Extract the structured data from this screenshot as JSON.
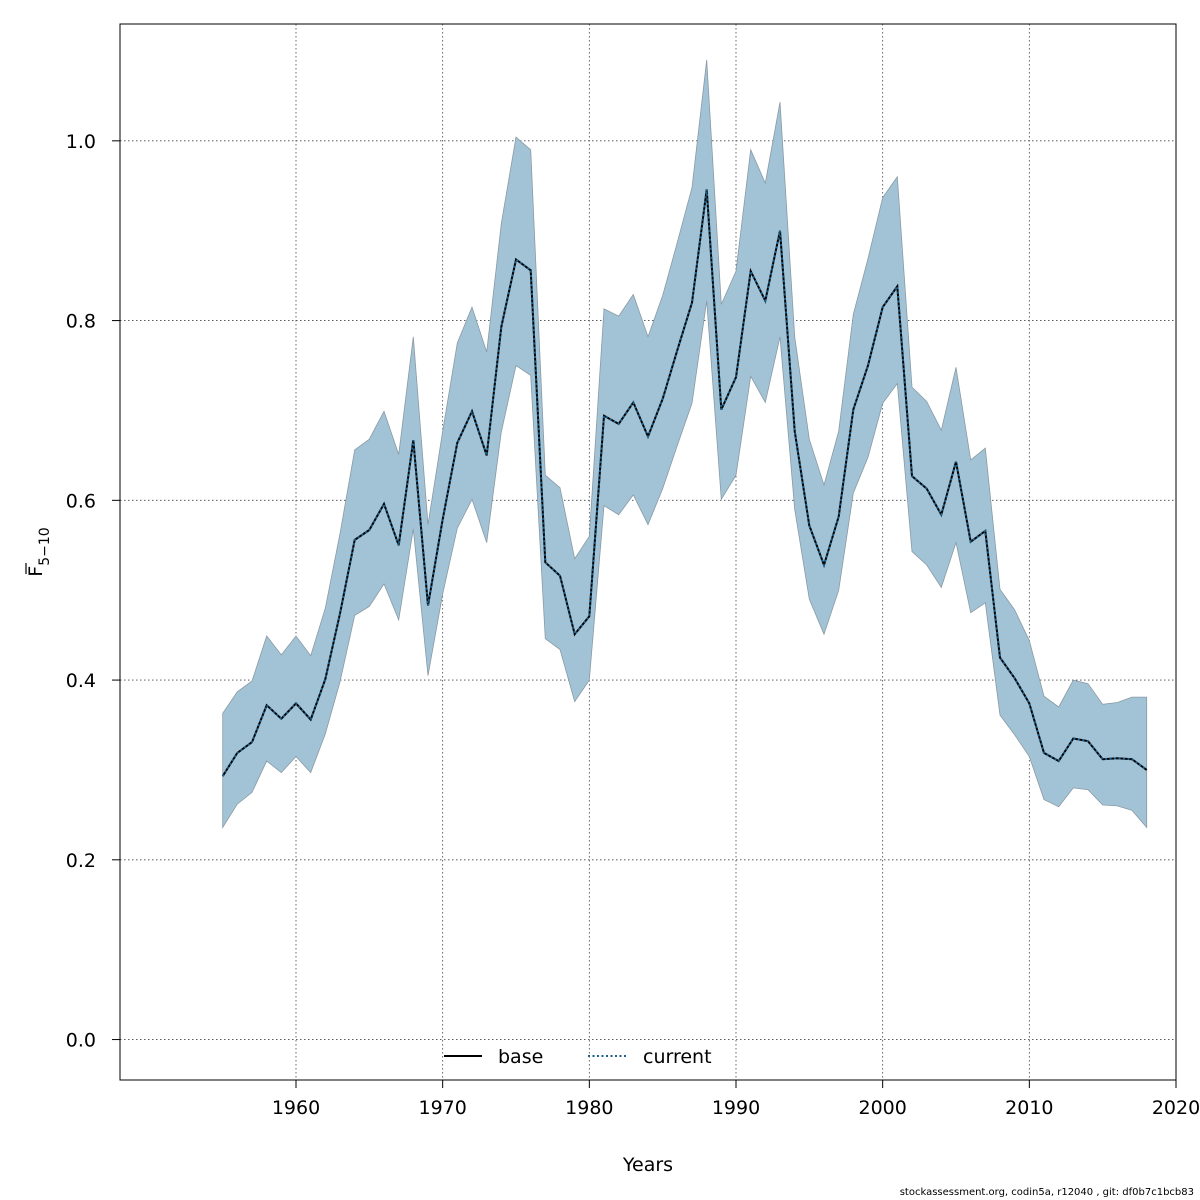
{
  "chart_data": {
    "type": "area",
    "xlabel": "Years",
    "ylabel": {
      "main": "F",
      "sub": "5−10"
    },
    "xlim": [
      1948,
      2020
    ],
    "ylim": [
      -0.045,
      1.13
    ],
    "x_ticks": [
      1960,
      1970,
      1980,
      1990,
      2000,
      2010,
      2020
    ],
    "y_ticks": [
      0.0,
      0.2,
      0.4,
      0.6,
      0.8,
      1.0
    ],
    "y_tick_labels": [
      "0.0",
      "0.2",
      "0.4",
      "0.6",
      "0.8",
      "1.0"
    ],
    "grid": true,
    "legend_position": "bottom",
    "colors": {
      "band": "#a2c3d5",
      "band_edge": "#8a9aa5",
      "base": "#000000",
      "current": "#1f5f8b"
    },
    "x": [
      1955,
      1956,
      1957,
      1958,
      1959,
      1960,
      1961,
      1962,
      1963,
      1964,
      1965,
      1966,
      1967,
      1968,
      1969,
      1970,
      1971,
      1972,
      1973,
      1974,
      1975,
      1976,
      1977,
      1978,
      1979,
      1980,
      1981,
      1982,
      1983,
      1984,
      1985,
      1986,
      1987,
      1988,
      1989,
      1990,
      1991,
      1992,
      1993,
      1994,
      1995,
      1996,
      1997,
      1998,
      1999,
      2000,
      2001,
      2002,
      2003,
      2004,
      2005,
      2006,
      2007,
      2008,
      2009,
      2010,
      2011,
      2012,
      2013,
      2014,
      2015,
      2016,
      2017,
      2018
    ],
    "upper": [
      0.363,
      0.387,
      0.399,
      0.449,
      0.428,
      0.449,
      0.427,
      0.48,
      0.563,
      0.656,
      0.668,
      0.699,
      0.651,
      0.782,
      0.573,
      0.677,
      0.775,
      0.815,
      0.765,
      0.908,
      1.004,
      0.99,
      0.628,
      0.614,
      0.535,
      0.56,
      0.813,
      0.805,
      0.829,
      0.782,
      0.828,
      0.887,
      0.948,
      1.09,
      0.818,
      0.855,
      0.99,
      0.953,
      1.043,
      0.782,
      0.668,
      0.617,
      0.677,
      0.807,
      0.869,
      0.937,
      0.96,
      0.726,
      0.71,
      0.678,
      0.748,
      0.645,
      0.658,
      0.501,
      0.478,
      0.444,
      0.382,
      0.37,
      0.4,
      0.396,
      0.373,
      0.375,
      0.381,
      0.381
    ],
    "lower": [
      0.236,
      0.262,
      0.275,
      0.31,
      0.297,
      0.315,
      0.297,
      0.34,
      0.398,
      0.472,
      0.482,
      0.507,
      0.467,
      0.568,
      0.405,
      0.496,
      0.569,
      0.601,
      0.553,
      0.676,
      0.75,
      0.739,
      0.446,
      0.434,
      0.376,
      0.4,
      0.594,
      0.584,
      0.606,
      0.573,
      0.613,
      0.661,
      0.708,
      0.822,
      0.601,
      0.628,
      0.738,
      0.709,
      0.782,
      0.59,
      0.49,
      0.451,
      0.5,
      0.608,
      0.648,
      0.708,
      0.73,
      0.543,
      0.528,
      0.503,
      0.553,
      0.475,
      0.486,
      0.361,
      0.339,
      0.315,
      0.267,
      0.259,
      0.28,
      0.278,
      0.261,
      0.26,
      0.255,
      0.236
    ],
    "series": [
      {
        "name": "base",
        "line_style": "solid",
        "values": [
          0.293,
          0.319,
          0.331,
          0.372,
          0.357,
          0.374,
          0.356,
          0.401,
          0.474,
          0.556,
          0.567,
          0.596,
          0.55,
          0.667,
          0.483,
          0.579,
          0.664,
          0.699,
          0.65,
          0.793,
          0.868,
          0.856,
          0.531,
          0.516,
          0.451,
          0.471,
          0.694,
          0.685,
          0.709,
          0.671,
          0.713,
          0.767,
          0.82,
          0.946,
          0.701,
          0.737,
          0.855,
          0.822,
          0.9,
          0.677,
          0.572,
          0.528,
          0.582,
          0.701,
          0.75,
          0.815,
          0.838,
          0.627,
          0.613,
          0.584,
          0.643,
          0.554,
          0.566,
          0.425,
          0.402,
          0.374,
          0.319,
          0.31,
          0.335,
          0.332,
          0.312,
          0.313,
          0.312,
          0.3
        ]
      },
      {
        "name": "current",
        "line_style": "dotted",
        "values": [
          0.293,
          0.319,
          0.331,
          0.372,
          0.357,
          0.374,
          0.356,
          0.401,
          0.474,
          0.556,
          0.567,
          0.596,
          0.55,
          0.667,
          0.483,
          0.579,
          0.664,
          0.699,
          0.65,
          0.793,
          0.868,
          0.856,
          0.531,
          0.516,
          0.451,
          0.471,
          0.694,
          0.685,
          0.709,
          0.671,
          0.713,
          0.767,
          0.82,
          0.946,
          0.701,
          0.737,
          0.855,
          0.822,
          0.9,
          0.677,
          0.572,
          0.528,
          0.582,
          0.701,
          0.75,
          0.815,
          0.838,
          0.627,
          0.613,
          0.584,
          0.643,
          0.554,
          0.566,
          0.425,
          0.402,
          0.374,
          0.319,
          0.31,
          0.335,
          0.332,
          0.312,
          0.313,
          0.312,
          0.3
        ]
      }
    ]
  },
  "footer": {
    "text": "stockassessment.org, codin5a, r12040 , git: df0b7c1bcb83"
  }
}
